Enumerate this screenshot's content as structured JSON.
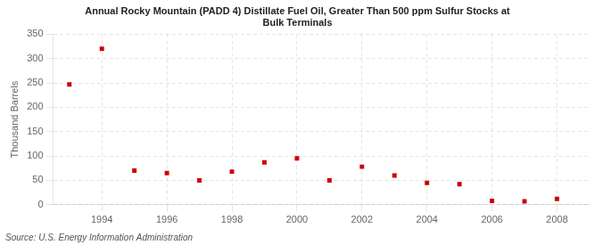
{
  "chart_data": {
    "type": "scatter",
    "title": "Annual Rocky Mountain (PADD 4) Distillate Fuel Oil, Greater Than 500 ppm Sulfur Stocks at\nBulk Terminals",
    "ylabel": "Thousand Barrels",
    "annotations": [
      "Source: U.S. Energy Information Administration"
    ],
    "x": [
      1993,
      1994,
      1995,
      1996,
      1997,
      1998,
      1999,
      2000,
      2001,
      2002,
      2003,
      2004,
      2005,
      2006,
      2007,
      2008
    ],
    "values": [
      247,
      320,
      70,
      65,
      50,
      68,
      87,
      95,
      50,
      78,
      60,
      45,
      42,
      8,
      7,
      12
    ],
    "color": "#cc0000",
    "marker": "square",
    "xlim": [
      1992.5,
      2009
    ],
    "xticks": [
      1994,
      1996,
      1998,
      2000,
      2002,
      2004,
      2006,
      2008
    ],
    "ylim": [
      0,
      350
    ],
    "yticks": [
      0,
      50,
      100,
      150,
      200,
      250,
      300,
      350
    ],
    "grid": true
  }
}
